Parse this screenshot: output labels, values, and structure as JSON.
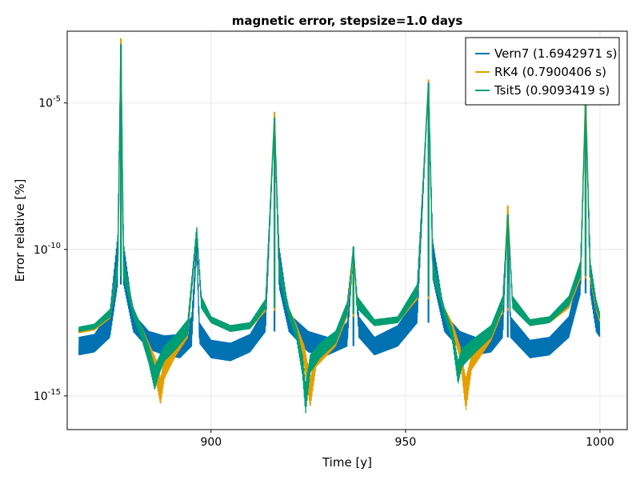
{
  "chart_data": {
    "type": "line",
    "title": "magnetic error, stepsize=1.0 days",
    "xlabel": "Time [y]",
    "ylabel": "Error relative [%]",
    "xlim": [
      863,
      1007
    ],
    "ylim_log10": [
      -16.15,
      -2.55
    ],
    "y_scale": "log",
    "x_ticks": [
      900,
      950,
      1000
    ],
    "x_tick_labels": [
      "900",
      "950",
      "1000"
    ],
    "y_ticks_log10": [
      -15,
      -10,
      -5
    ],
    "y_tick_labels": [
      {
        "base": "10",
        "exp": "-15"
      },
      {
        "base": "10",
        "exp": "-10"
      },
      {
        "base": "10",
        "exp": "-5"
      }
    ],
    "grid": true,
    "legend_position": "top-right",
    "series": [
      {
        "name": "Vern7 (1.6942971 s)",
        "color": "#0072B2",
        "band_log10": [
          [
            866,
            -13.6,
            -13.0
          ],
          [
            870,
            -13.5,
            -12.9
          ],
          [
            874,
            -13.0,
            -12.1
          ],
          [
            876,
            -11.2,
            -9.5
          ],
          [
            876.8,
            -3.0,
            -3.0
          ],
          [
            877.5,
            -11.2,
            -9.8
          ],
          [
            880,
            -12.8,
            -12.2
          ],
          [
            884,
            -13.4,
            -12.8
          ],
          [
            888,
            -13.6,
            -12.95
          ],
          [
            892,
            -13.7,
            -12.9
          ],
          [
            895,
            -13.3,
            -12.3
          ],
          [
            896.3,
            -10.0,
            -9.5
          ],
          [
            897,
            -13.2,
            -12.5
          ],
          [
            900,
            -13.7,
            -13.1
          ],
          [
            905,
            -13.8,
            -13.2
          ],
          [
            910,
            -13.5,
            -12.9
          ],
          [
            914,
            -12.8,
            -12.0
          ],
          [
            916.3,
            -5.5,
            -5.5
          ],
          [
            917.5,
            -11.3,
            -9.9
          ],
          [
            920,
            -12.8,
            -12.2
          ],
          [
            925,
            -13.5,
            -12.8
          ],
          [
            930,
            -13.6,
            -13.0
          ],
          [
            935,
            -13.3,
            -12.5
          ],
          [
            936.6,
            -10.0,
            -10.0
          ],
          [
            938,
            -13.0,
            -12.3
          ],
          [
            942,
            -13.6,
            -13.0
          ],
          [
            948,
            -13.3,
            -12.6
          ],
          [
            953,
            -12.5,
            -11.6
          ],
          [
            955.9,
            -4.3,
            -4.3
          ],
          [
            957,
            -11.0,
            -9.7
          ],
          [
            960,
            -12.8,
            -12.2
          ],
          [
            964,
            -13.4,
            -12.8
          ],
          [
            968,
            -13.6,
            -13.0
          ],
          [
            972,
            -13.5,
            -12.8
          ],
          [
            975,
            -13.0,
            -12.2
          ],
          [
            976.3,
            -8.7,
            -8.7
          ],
          [
            977,
            -13.0,
            -12.3
          ],
          [
            982,
            -13.7,
            -13.1
          ],
          [
            987,
            -13.6,
            -13.0
          ],
          [
            992,
            -13.0,
            -12.3
          ],
          [
            995,
            -11.5,
            -10.5
          ],
          [
            996.3,
            -4.7,
            -4.7
          ],
          [
            997.5,
            -11.5,
            -10.4
          ],
          [
            999,
            -12.8,
            -12.0
          ],
          [
            1000,
            -13.0,
            -12.4
          ]
        ]
      },
      {
        "name": "RK4 (0.7900406 s)",
        "color": "#E69F00",
        "band_log10": [
          [
            866,
            -12.85,
            -12.7
          ],
          [
            870,
            -12.75,
            -12.6
          ],
          [
            874,
            -12.35,
            -12.1
          ],
          [
            876,
            -10.8,
            -10.4
          ],
          [
            876.8,
            -2.8,
            -2.8
          ],
          [
            877.5,
            -10.9,
            -10.4
          ],
          [
            880,
            -12.2,
            -12.0
          ],
          [
            882,
            -12.9,
            -12.6
          ],
          [
            884,
            -13.6,
            -13.2
          ],
          [
            886,
            -14.6,
            -13.8
          ],
          [
            887,
            -15.3,
            -14.4
          ],
          [
            888,
            -14.4,
            -13.7
          ],
          [
            891,
            -13.6,
            -13.1
          ],
          [
            894,
            -13.0,
            -12.5
          ],
          [
            896.3,
            -9.5,
            -9.2
          ],
          [
            897.5,
            -12.0,
            -11.6
          ],
          [
            900,
            -12.5,
            -12.3
          ],
          [
            905,
            -12.8,
            -12.6
          ],
          [
            910,
            -12.7,
            -12.5
          ],
          [
            914,
            -12.1,
            -11.8
          ],
          [
            916.3,
            -5.3,
            -5.3
          ],
          [
            917.5,
            -10.9,
            -10.4
          ],
          [
            920,
            -12.2,
            -12.0
          ],
          [
            922,
            -12.9,
            -12.6
          ],
          [
            924,
            -14.0,
            -13.3
          ],
          [
            925.5,
            -15.4,
            -14.4
          ],
          [
            927,
            -14.0,
            -13.6
          ],
          [
            932,
            -13.3,
            -12.9
          ],
          [
            935,
            -12.3,
            -11.9
          ],
          [
            936.6,
            -10.2,
            -10.2
          ],
          [
            937.5,
            -12.0,
            -11.6
          ],
          [
            942,
            -12.6,
            -12.4
          ],
          [
            948,
            -12.5,
            -12.3
          ],
          [
            953,
            -11.7,
            -11.3
          ],
          [
            955.9,
            -4.2,
            -4.2
          ],
          [
            957,
            -10.9,
            -10.4
          ],
          [
            960,
            -12.2,
            -12.0
          ],
          [
            962,
            -12.8,
            -12.5
          ],
          [
            964,
            -13.7,
            -13.3
          ],
          [
            965.5,
            -15.5,
            -14.4
          ],
          [
            967,
            -14.1,
            -13.6
          ],
          [
            972,
            -13.1,
            -12.7
          ],
          [
            975,
            -12.1,
            -11.7
          ],
          [
            976.3,
            -8.5,
            -8.5
          ],
          [
            977.5,
            -12.0,
            -11.6
          ],
          [
            982,
            -12.6,
            -12.4
          ],
          [
            987,
            -12.5,
            -12.3
          ],
          [
            992,
            -12.0,
            -11.7
          ],
          [
            995,
            -11.0,
            -10.5
          ],
          [
            996.3,
            -4.5,
            -4.5
          ],
          [
            997.5,
            -11.0,
            -10.5
          ],
          [
            999,
            -12.1,
            -11.8
          ],
          [
            1000,
            -12.5,
            -12.3
          ]
        ]
      },
      {
        "name": "Tsit5 (0.9093419 s)",
        "color": "#009E73",
        "band_log10": [
          [
            866,
            -12.8,
            -12.65
          ],
          [
            870,
            -12.7,
            -12.55
          ],
          [
            874,
            -12.3,
            -12.05
          ],
          [
            876,
            -10.8,
            -10.4
          ],
          [
            876.8,
            -3.0,
            -3.0
          ],
          [
            877.5,
            -10.9,
            -10.4
          ],
          [
            880,
            -12.3,
            -12.0
          ],
          [
            882,
            -13.0,
            -12.6
          ],
          [
            884,
            -13.9,
            -13.3
          ],
          [
            885.5,
            -14.8,
            -14.0
          ],
          [
            886.5,
            -14.3,
            -13.7
          ],
          [
            888,
            -13.8,
            -13.3
          ],
          [
            891,
            -13.4,
            -12.9
          ],
          [
            894,
            -12.9,
            -12.4
          ],
          [
            896.3,
            -9.5,
            -9.2
          ],
          [
            897.5,
            -12.0,
            -11.6
          ],
          [
            900,
            -12.5,
            -12.3
          ],
          [
            905,
            -12.8,
            -12.6
          ],
          [
            910,
            -12.7,
            -12.5
          ],
          [
            914,
            -12.0,
            -11.7
          ],
          [
            916.3,
            -5.5,
            -5.5
          ],
          [
            917.5,
            -10.9,
            -10.4
          ],
          [
            920,
            -12.3,
            -12.0
          ],
          [
            922,
            -13.1,
            -12.7
          ],
          [
            923.5,
            -14.3,
            -13.6
          ],
          [
            924.3,
            -15.6,
            -14.6
          ],
          [
            925.5,
            -14.2,
            -13.6
          ],
          [
            928,
            -13.7,
            -13.2
          ],
          [
            932,
            -13.2,
            -12.8
          ],
          [
            935,
            -12.2,
            -11.8
          ],
          [
            936.6,
            -9.9,
            -9.9
          ],
          [
            937.5,
            -12.0,
            -11.6
          ],
          [
            942,
            -12.6,
            -12.4
          ],
          [
            948,
            -12.5,
            -12.3
          ],
          [
            953,
            -11.6,
            -11.2
          ],
          [
            955.9,
            -4.3,
            -4.3
          ],
          [
            957,
            -10.9,
            -10.4
          ],
          [
            960,
            -12.3,
            -12.0
          ],
          [
            962,
            -13.1,
            -12.7
          ],
          [
            963.5,
            -14.6,
            -13.8
          ],
          [
            964.5,
            -14.0,
            -13.4
          ],
          [
            968,
            -13.5,
            -13.0
          ],
          [
            972,
            -13.0,
            -12.6
          ],
          [
            975,
            -12.0,
            -11.6
          ],
          [
            976.3,
            -8.8,
            -8.8
          ],
          [
            977.5,
            -12.0,
            -11.6
          ],
          [
            982,
            -12.6,
            -12.4
          ],
          [
            987,
            -12.5,
            -12.3
          ],
          [
            992,
            -11.9,
            -11.6
          ],
          [
            995,
            -10.9,
            -10.4
          ],
          [
            996.3,
            -5.0,
            -5.0
          ],
          [
            997.5,
            -10.9,
            -10.4
          ],
          [
            999,
            -12.0,
            -11.7
          ],
          [
            1000,
            -12.4,
            -12.2
          ]
        ]
      }
    ]
  }
}
